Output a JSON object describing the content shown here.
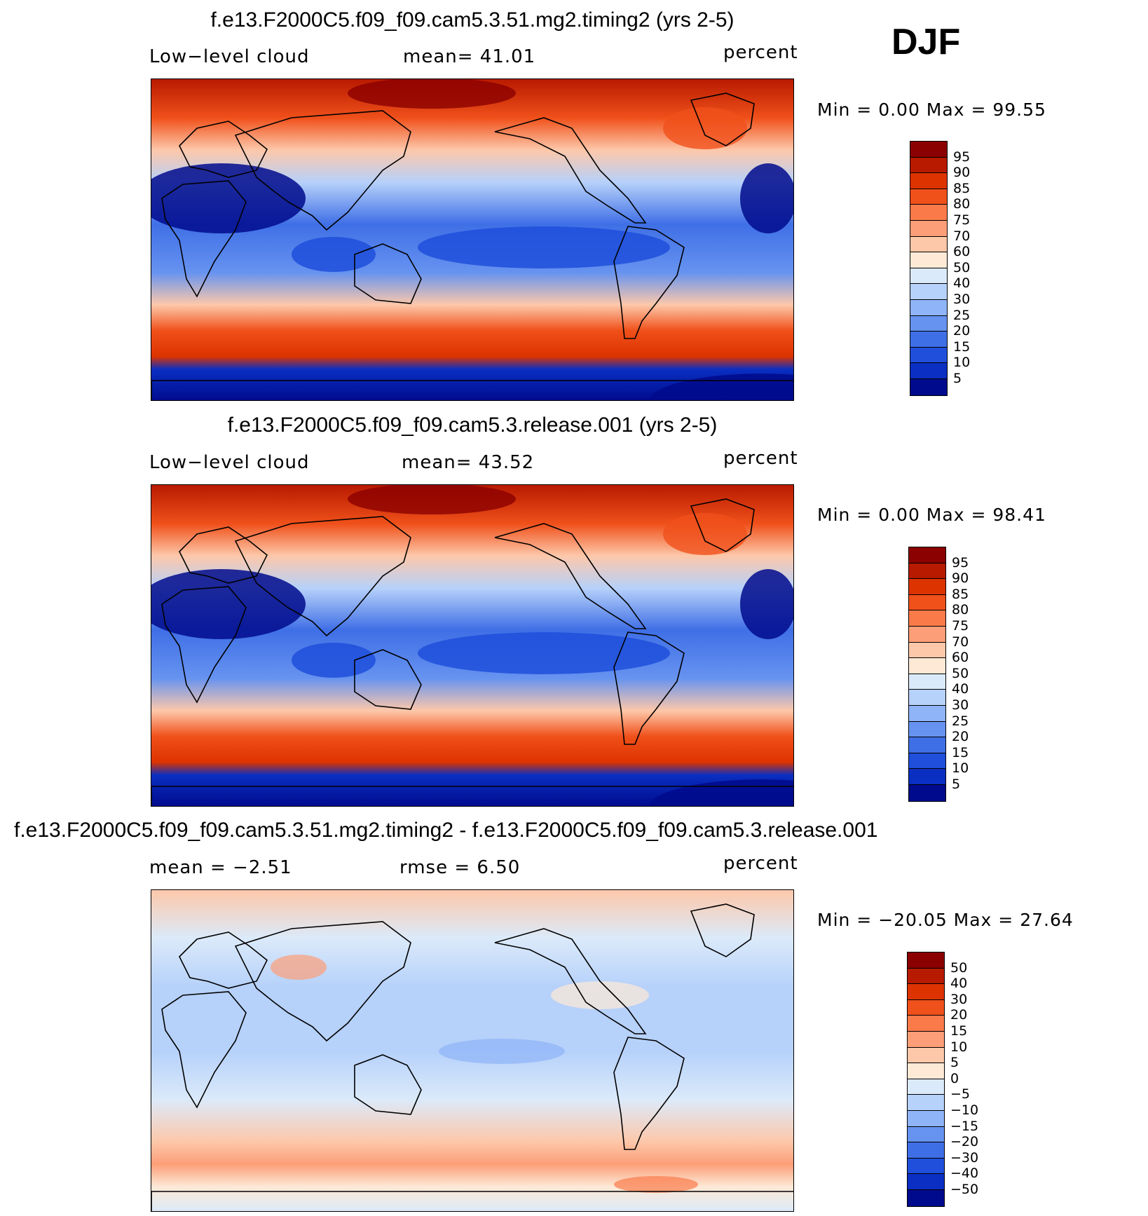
{
  "season": "DJF",
  "panels": [
    {
      "title": "f.e13.F2000C5.f09_f09.cam5.3.51.mg2.timing2 (yrs 2-5)",
      "left_label": "Low−level cloud",
      "mid_label": "mean=  41.01",
      "units": "percent",
      "minmax": "Min =    0.00 Max =   99.55",
      "ticks": [
        "95",
        "90",
        "85",
        "80",
        "75",
        "70",
        "60",
        "50",
        "40",
        "30",
        "25",
        "20",
        "15",
        "10",
        "5"
      ],
      "colors": [
        "#8b0000",
        "#b81a00",
        "#dd3300",
        "#f0501a",
        "#fa7a4a",
        "#fc9e78",
        "#fdc8aa",
        "#fde9d6",
        "#dbeafa",
        "#b6d1fa",
        "#8fb4f7",
        "#6793f0",
        "#3f6fe6",
        "#1f4fdb",
        "#0a2fc2",
        "#000a8c"
      ]
    },
    {
      "title": "f.e13.F2000C5.f09_f09.cam5.3.release.001 (yrs 2-5)",
      "left_label": "Low−level cloud",
      "mid_label": "mean=  43.52",
      "units": "percent",
      "minmax": "Min =    0.00 Max =   98.41",
      "ticks": [
        "95",
        "90",
        "85",
        "80",
        "75",
        "70",
        "60",
        "50",
        "40",
        "30",
        "25",
        "20",
        "15",
        "10",
        "5"
      ],
      "colors": [
        "#8b0000",
        "#b81a00",
        "#dd3300",
        "#f0501a",
        "#fa7a4a",
        "#fc9e78",
        "#fdc8aa",
        "#fde9d6",
        "#dbeafa",
        "#b6d1fa",
        "#8fb4f7",
        "#6793f0",
        "#3f6fe6",
        "#1f4fdb",
        "#0a2fc2",
        "#000a8c"
      ]
    },
    {
      "title": "f.e13.F2000C5.f09_f09.cam5.3.51.mg2.timing2 - f.e13.F2000C5.f09_f09.cam5.3.release.001",
      "left_label": "mean =   −2.51",
      "mid_label": "rmse =    6.50",
      "units": "percent",
      "minmax": "Min = −20.05 Max =   27.64",
      "ticks": [
        "50",
        "40",
        "30",
        "20",
        "15",
        "10",
        "5",
        "0",
        "−5",
        "−10",
        "−15",
        "−20",
        "−30",
        "−40",
        "−50"
      ],
      "colors": [
        "#8b0000",
        "#b81a00",
        "#dd3300",
        "#f0501a",
        "#fa7a4a",
        "#fc9e78",
        "#fdc8aa",
        "#fde9d6",
        "#dbeafa",
        "#b6d1fa",
        "#8fb4f7",
        "#6793f0",
        "#3f6fe6",
        "#1f4fdb",
        "#0a2fc2",
        "#000a8c"
      ]
    }
  ]
}
